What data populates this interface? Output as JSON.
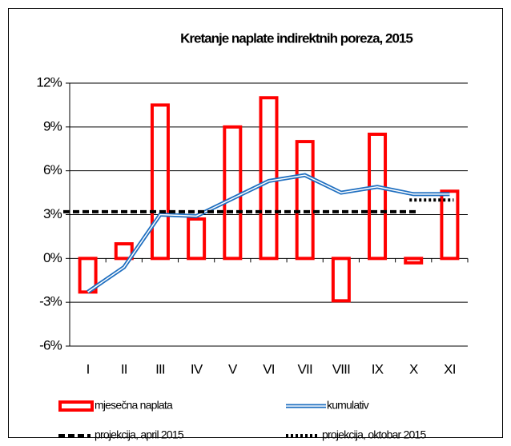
{
  "chart_data": {
    "type": "bar",
    "title": "Kretanje naplate indirektnih poreza,  2015",
    "categories": [
      "I",
      "II",
      "III",
      "IV",
      "V",
      "VI",
      "VII",
      "VIII",
      "IX",
      "X",
      "XI"
    ],
    "series": [
      {
        "name": "mjesečna naplata",
        "type": "bar",
        "color": "#ff0000",
        "values": [
          -2.3,
          1.0,
          10.5,
          2.7,
          9.0,
          11.0,
          8.0,
          -2.9,
          8.5,
          -0.3,
          4.6
        ]
      },
      {
        "name": "kumulativ",
        "type": "line",
        "style": "double",
        "color": "#1f6fc0",
        "values": [
          -2.3,
          -0.6,
          3.0,
          2.9,
          4.1,
          5.3,
          5.7,
          4.5,
          4.9,
          4.4,
          4.4
        ]
      },
      {
        "name": "projekcija, april 2015",
        "type": "line",
        "style": "dashed",
        "color": "#000000",
        "values": [
          3.2,
          3.2,
          3.2,
          3.2,
          3.2,
          3.2,
          3.2,
          3.2,
          3.2,
          3.2,
          null
        ]
      },
      {
        "name": "projekcija, oktobar 2015",
        "type": "line",
        "style": "dotted",
        "color": "#000000",
        "values": [
          null,
          null,
          null,
          null,
          null,
          null,
          null,
          null,
          null,
          4.0,
          4.0
        ]
      }
    ],
    "ylim": [
      -6,
      12
    ],
    "yticks": [
      {
        "value": -6,
        "label": "-6%"
      },
      {
        "value": -3,
        "label": "-3%"
      },
      {
        "value": 0,
        "label": "0%"
      },
      {
        "value": 3,
        "label": "3%"
      },
      {
        "value": 6,
        "label": "6%"
      },
      {
        "value": 9,
        "label": "9%"
      },
      {
        "value": 12,
        "label": "12%"
      }
    ],
    "grid": true
  }
}
